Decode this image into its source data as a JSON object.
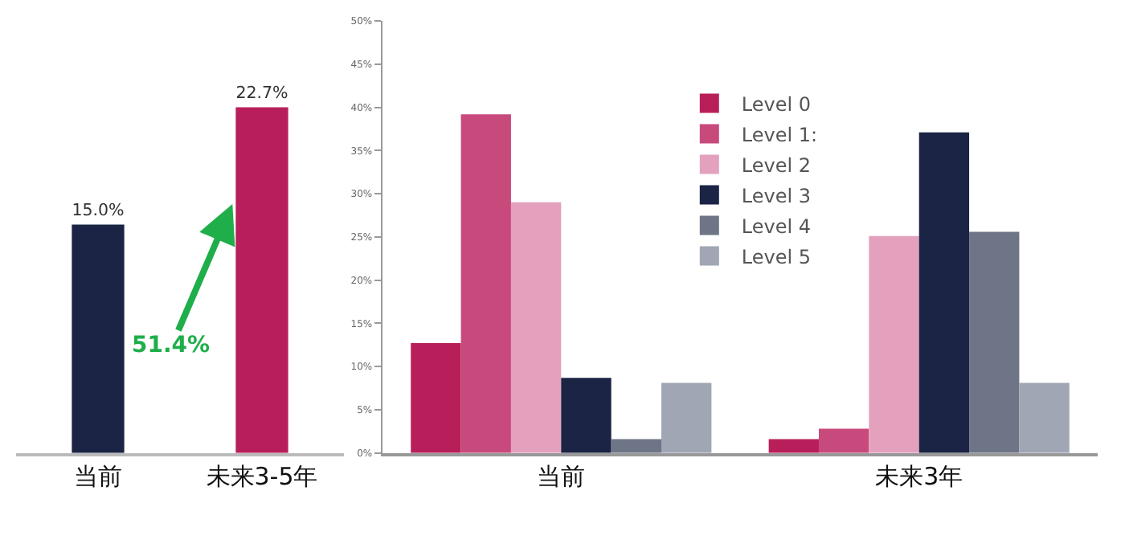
{
  "chart_data": [
    {
      "type": "bar",
      "categories": [
        "当前",
        "未来3-5年"
      ],
      "values": [
        15.0,
        22.7
      ],
      "colors": [
        "#1b2444",
        "#b81f5a"
      ],
      "data_labels": true,
      "value_labels": [
        "15.0%",
        "22.7%"
      ],
      "annotations": [
        "51.4%"
      ]
    },
    {
      "type": "bar",
      "categories": [
        "当前",
        "未来3年"
      ],
      "ylim": [
        0,
        50
      ],
      "yticks": [
        {
          "value": 0,
          "label": "0%"
        },
        {
          "value": 5,
          "label": "5%"
        },
        {
          "value": 10,
          "label": "10%"
        },
        {
          "value": 15,
          "label": "15%"
        },
        {
          "value": 20,
          "label": "20%"
        },
        {
          "value": 25,
          "label": "25%"
        },
        {
          "value": 30,
          "label": "30%"
        },
        {
          "value": 35,
          "label": "35%"
        },
        {
          "value": 40,
          "label": "40%"
        },
        {
          "value": 45,
          "label": "45%"
        },
        {
          "value": 50,
          "label": "50%"
        }
      ],
      "legend": "top right",
      "series": [
        {
          "name": "Level 0",
          "color": "#b81f5a",
          "values": [
            12.7,
            1.6
          ]
        },
        {
          "name": "Level 1:",
          "color": "#c84a7c",
          "values": [
            39.2,
            2.8
          ]
        },
        {
          "name": "Level 2",
          "color": "#e3a1bd",
          "values": [
            29.0,
            25.1
          ]
        },
        {
          "name": "Level 3",
          "color": "#1b2444",
          "values": [
            8.7,
            37.1
          ]
        },
        {
          "name": "Level 4",
          "color": "#6e7587",
          "values": [
            1.6,
            25.6
          ]
        },
        {
          "name": "Level 5",
          "color": "#a0a6b3",
          "values": [
            8.1,
            8.1
          ]
        }
      ]
    }
  ]
}
